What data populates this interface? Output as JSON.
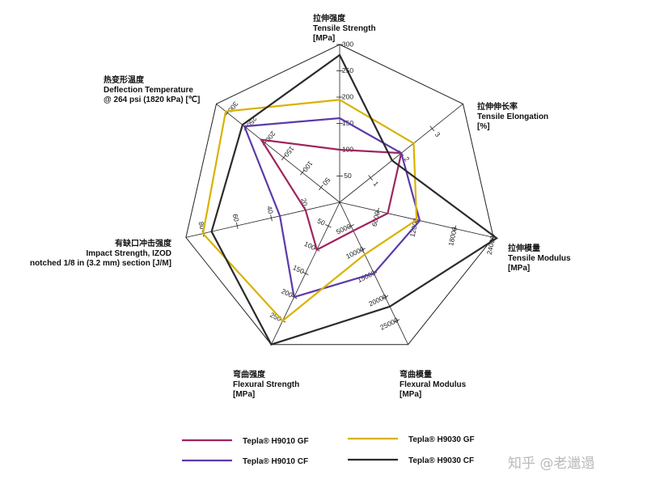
{
  "chart_data": {
    "type": "radar",
    "axes": [
      {
        "title": [
          "拉伸强度",
          "Tensile Strength",
          "[MPa]"
        ],
        "ticks": [
          "50",
          "100",
          "150",
          "200",
          "250",
          "300"
        ],
        "max": 300
      },
      {
        "title": [
          "拉伸伸长率",
          "Tensile Elongation",
          "[%]"
        ],
        "ticks": [
          "1",
          "2",
          "3"
        ],
        "max": 4
      },
      {
        "title": [
          "拉伸模量",
          "Tensile Modulus",
          "[MPa]"
        ],
        "ticks": [
          "6000",
          "12000",
          "18000",
          "24000"
        ],
        "max": 24000
      },
      {
        "title": [
          "弯曲模量",
          "Flexural Modulus",
          "[MPa]"
        ],
        "ticks": [
          "5000",
          "10000",
          "15000",
          "20000",
          "25000"
        ],
        "max": 30000
      },
      {
        "title": [
          "弯曲强度",
          "Flexural Strength",
          "[MPa]"
        ],
        "ticks": [
          "50",
          "100",
          "150",
          "200",
          "250"
        ],
        "max": 300
      },
      {
        "title": [
          "有缺口冲击强度",
          "Impact Strength, IZOD",
          "notched 1/8 in (3.2 mm) section [J/M]"
        ],
        "ticks": [
          "20",
          "40",
          "60",
          "80"
        ],
        "max": 90
      },
      {
        "title": [
          "热变形温度",
          "Deflection Temperature",
          "@ 264 psi (1820 kPa) [℃]"
        ],
        "ticks": [
          "50",
          "100",
          "150",
          "200",
          "250",
          "300"
        ],
        "max": 330
      }
    ],
    "series": [
      {
        "name": "Tepla® H9010 GF",
        "color": "#a0245e",
        "values": [
          100,
          2.0,
          7500,
          6000,
          100,
          20,
          210
        ]
      },
      {
        "name": "Tepla® H9010 CF",
        "color": "#5c3aa8",
        "values": [
          160,
          2.0,
          12500,
          15000,
          200,
          35,
          255
        ]
      },
      {
        "name": "Tepla® H9030 GF",
        "color": "#d8b200",
        "values": [
          195,
          2.4,
          12000,
          11000,
          250,
          80,
          305
        ]
      },
      {
        "name": "Tepla® H9030 CF",
        "color": "#2b2b2b",
        "values": [
          280,
          1.7,
          24500,
          22000,
          300,
          75,
          260
        ]
      }
    ]
  },
  "watermark": "知乎 @老邋遢"
}
